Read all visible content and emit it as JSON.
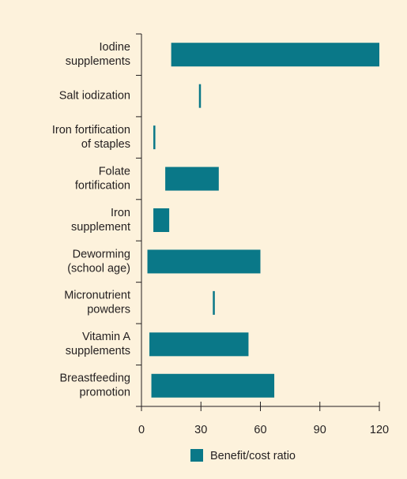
{
  "chart_data": {
    "type": "range_bar",
    "categories": [
      [
        "Iodine",
        "supplements"
      ],
      [
        "Salt iodization"
      ],
      [
        "Iron fortification",
        "of staples"
      ],
      [
        "Folate",
        "fortification"
      ],
      [
        "Iron",
        "supplement"
      ],
      [
        "Deworming",
        "(school age)"
      ],
      [
        "Micronutrient",
        "powders"
      ],
      [
        "Vitamin A",
        "supplements"
      ],
      [
        "Breastfeeding",
        "promotion"
      ]
    ],
    "series": [
      {
        "name": "Benefit/cost ratio",
        "color": "#0a7888",
        "values": [
          [
            15,
            120
          ],
          [
            29,
            30
          ],
          [
            6,
            7
          ],
          [
            12,
            39
          ],
          [
            6,
            14
          ],
          [
            3,
            60
          ],
          [
            36,
            37
          ],
          [
            4,
            54
          ],
          [
            5,
            67
          ]
        ]
      }
    ],
    "xlim": [
      0,
      120
    ],
    "xticks": [
      0,
      30,
      60,
      90,
      120
    ],
    "legend": "bottom"
  }
}
